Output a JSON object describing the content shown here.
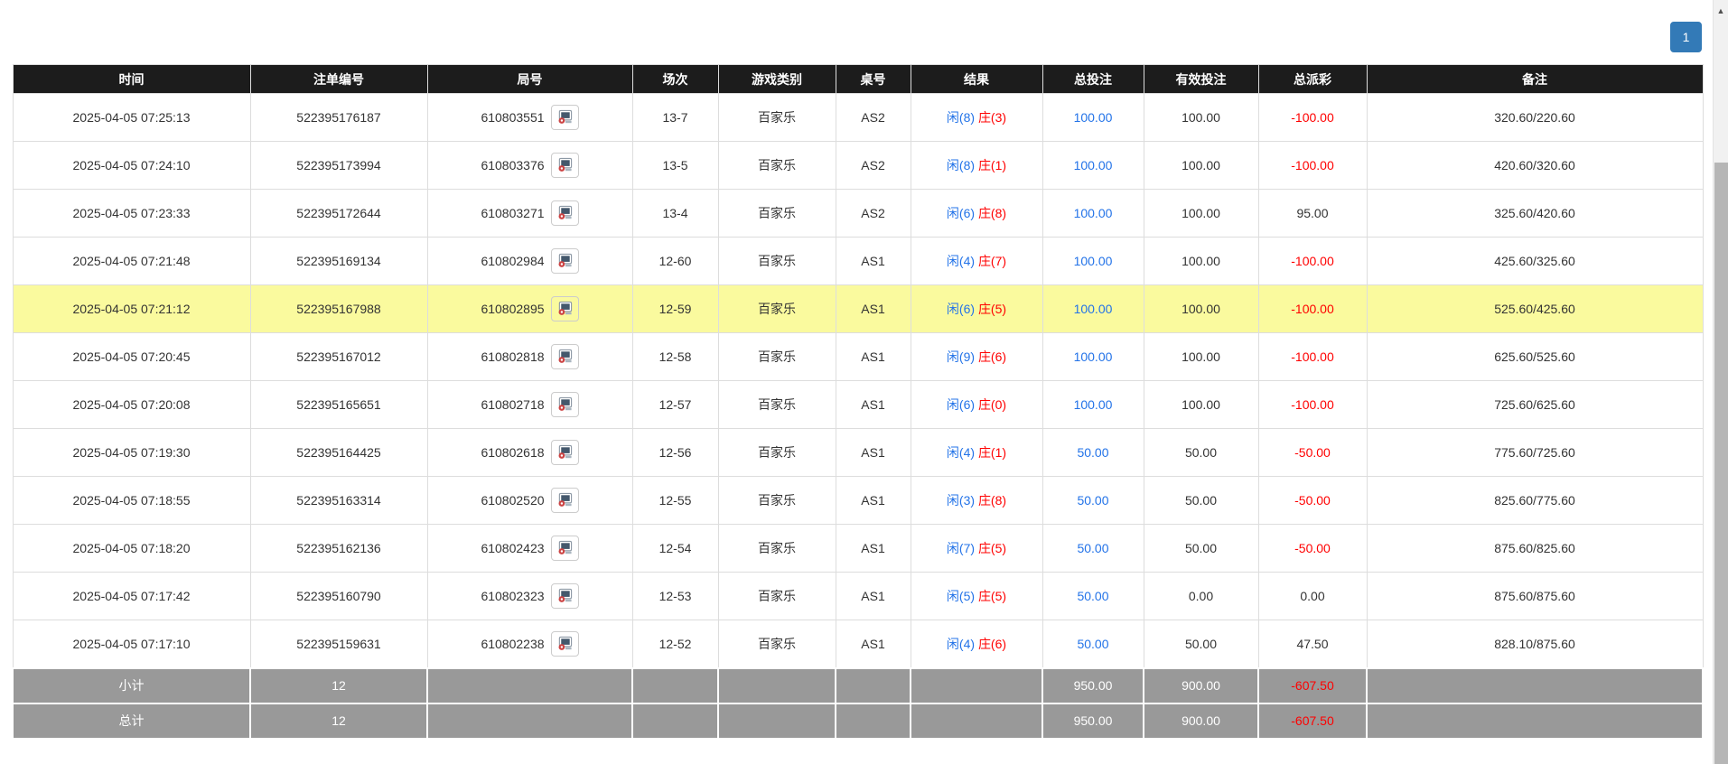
{
  "pagination": {
    "current_page": "1"
  },
  "scrollbar": {
    "up_glyph": "▲"
  },
  "icons": {
    "round_cell_icon": "video-replay-icon",
    "scrollbar_top_icon": "up-arrow-icon"
  },
  "colors": {
    "header_bg": "#1c1c1c",
    "accent_blue": "#2373e8",
    "loss_red": "#ff0000",
    "highlight_yellow": "#fafa9e",
    "summary_grey": "#999999",
    "page_button_blue": "#337ab7"
  },
  "table": {
    "columns": [
      "时间",
      "注单编号",
      "局号",
      "场次",
      "游戏类别",
      "桌号",
      "结果",
      "总投注",
      "有效投注",
      "总派彩",
      "备注"
    ],
    "rows": [
      {
        "time": "2025-04-05 07:25:13",
        "bet_id": "522395176187",
        "round_id": "610803551",
        "session": "13-7",
        "game_type": "百家乐",
        "table_no": "AS2",
        "result_player": "闲(8)",
        "result_banker": "庄(3)",
        "total_bet": "100.00",
        "valid_bet": "100.00",
        "payout": "-100.00",
        "remark": "320.60/220.60",
        "highlighted": false
      },
      {
        "time": "2025-04-05 07:24:10",
        "bet_id": "522395173994",
        "round_id": "610803376",
        "session": "13-5",
        "game_type": "百家乐",
        "table_no": "AS2",
        "result_player": "闲(8)",
        "result_banker": "庄(1)",
        "total_bet": "100.00",
        "valid_bet": "100.00",
        "payout": "-100.00",
        "remark": "420.60/320.60",
        "highlighted": false
      },
      {
        "time": "2025-04-05 07:23:33",
        "bet_id": "522395172644",
        "round_id": "610803271",
        "session": "13-4",
        "game_type": "百家乐",
        "table_no": "AS2",
        "result_player": "闲(6)",
        "result_banker": "庄(8)",
        "total_bet": "100.00",
        "valid_bet": "100.00",
        "payout": "95.00",
        "remark": "325.60/420.60",
        "highlighted": false
      },
      {
        "time": "2025-04-05 07:21:48",
        "bet_id": "522395169134",
        "round_id": "610802984",
        "session": "12-60",
        "game_type": "百家乐",
        "table_no": "AS1",
        "result_player": "闲(4)",
        "result_banker": "庄(7)",
        "total_bet": "100.00",
        "valid_bet": "100.00",
        "payout": "-100.00",
        "remark": "425.60/325.60",
        "highlighted": false
      },
      {
        "time": "2025-04-05 07:21:12",
        "bet_id": "522395167988",
        "round_id": "610802895",
        "session": "12-59",
        "game_type": "百家乐",
        "table_no": "AS1",
        "result_player": "闲(6)",
        "result_banker": "庄(5)",
        "total_bet": "100.00",
        "valid_bet": "100.00",
        "payout": "-100.00",
        "remark": "525.60/425.60",
        "highlighted": true
      },
      {
        "time": "2025-04-05 07:20:45",
        "bet_id": "522395167012",
        "round_id": "610802818",
        "session": "12-58",
        "game_type": "百家乐",
        "table_no": "AS1",
        "result_player": "闲(9)",
        "result_banker": "庄(6)",
        "total_bet": "100.00",
        "valid_bet": "100.00",
        "payout": "-100.00",
        "remark": "625.60/525.60",
        "highlighted": false
      },
      {
        "time": "2025-04-05 07:20:08",
        "bet_id": "522395165651",
        "round_id": "610802718",
        "session": "12-57",
        "game_type": "百家乐",
        "table_no": "AS1",
        "result_player": "闲(6)",
        "result_banker": "庄(0)",
        "total_bet": "100.00",
        "valid_bet": "100.00",
        "payout": "-100.00",
        "remark": "725.60/625.60",
        "highlighted": false
      },
      {
        "time": "2025-04-05 07:19:30",
        "bet_id": "522395164425",
        "round_id": "610802618",
        "session": "12-56",
        "game_type": "百家乐",
        "table_no": "AS1",
        "result_player": "闲(4)",
        "result_banker": "庄(1)",
        "total_bet": "50.00",
        "valid_bet": "50.00",
        "payout": "-50.00",
        "remark": "775.60/725.60",
        "highlighted": false
      },
      {
        "time": "2025-04-05 07:18:55",
        "bet_id": "522395163314",
        "round_id": "610802520",
        "session": "12-55",
        "game_type": "百家乐",
        "table_no": "AS1",
        "result_player": "闲(3)",
        "result_banker": "庄(8)",
        "total_bet": "50.00",
        "valid_bet": "50.00",
        "payout": "-50.00",
        "remark": "825.60/775.60",
        "highlighted": false
      },
      {
        "time": "2025-04-05 07:18:20",
        "bet_id": "522395162136",
        "round_id": "610802423",
        "session": "12-54",
        "game_type": "百家乐",
        "table_no": "AS1",
        "result_player": "闲(7)",
        "result_banker": "庄(5)",
        "total_bet": "50.00",
        "valid_bet": "50.00",
        "payout": "-50.00",
        "remark": "875.60/825.60",
        "highlighted": false
      },
      {
        "time": "2025-04-05 07:17:42",
        "bet_id": "522395160790",
        "round_id": "610802323",
        "session": "12-53",
        "game_type": "百家乐",
        "table_no": "AS1",
        "result_player": "闲(5)",
        "result_banker": "庄(5)",
        "total_bet": "50.00",
        "valid_bet": "0.00",
        "payout": "0.00",
        "remark": "875.60/875.60",
        "highlighted": false
      },
      {
        "time": "2025-04-05 07:17:10",
        "bet_id": "522395159631",
        "round_id": "610802238",
        "session": "12-52",
        "game_type": "百家乐",
        "table_no": "AS1",
        "result_player": "闲(4)",
        "result_banker": "庄(6)",
        "total_bet": "50.00",
        "valid_bet": "50.00",
        "payout": "47.50",
        "remark": "828.10/875.60",
        "highlighted": false
      }
    ],
    "subtotal": {
      "label": "小计",
      "count": "12",
      "total_bet": "950.00",
      "valid_bet": "900.00",
      "payout": "-607.50"
    },
    "total": {
      "label": "总计",
      "count": "12",
      "total_bet": "950.00",
      "valid_bet": "900.00",
      "payout": "-607.50"
    }
  }
}
